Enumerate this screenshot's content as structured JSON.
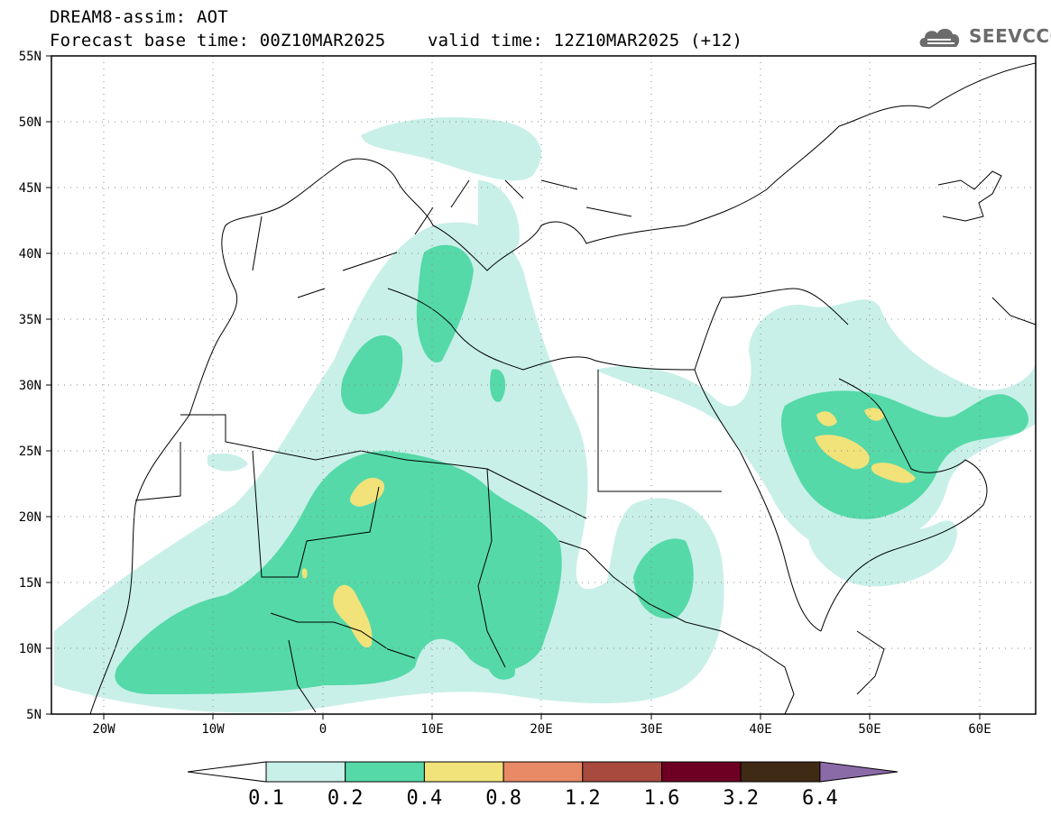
{
  "header": {
    "title_line1": "DREAM8-assim: AOT",
    "base_time": "Forecast base time: 00Z10MAR2025",
    "valid_time": "valid time: 12Z10MAR2025 (+12)"
  },
  "logo": {
    "text": "SEEVCCC",
    "icon": "cloud-logo-icon"
  },
  "map": {
    "projection": "lat-lon",
    "lon_range": [
      -25,
      65
    ],
    "lat_range": [
      5,
      55
    ],
    "lat_ticks": [
      "5N",
      "10N",
      "15N",
      "20N",
      "25N",
      "30N",
      "35N",
      "40N",
      "45N",
      "50N",
      "55N"
    ],
    "lon_ticks": [
      "20W",
      "10W",
      "0",
      "10E",
      "20E",
      "30E",
      "40E",
      "50E",
      "60E"
    ],
    "grid": "dotted"
  },
  "colorbar": {
    "labels": [
      "0.1",
      "0.2",
      "0.4",
      "0.8",
      "1.2",
      "1.6",
      "3.2",
      "6.4"
    ],
    "colors": [
      "#ffffff",
      "#c8f0e8",
      "#55d9a8",
      "#f2e27a",
      "#e88a66",
      "#a84a3e",
      "#6e0024",
      "#3f2a16",
      "#8b6aa8"
    ]
  }
}
